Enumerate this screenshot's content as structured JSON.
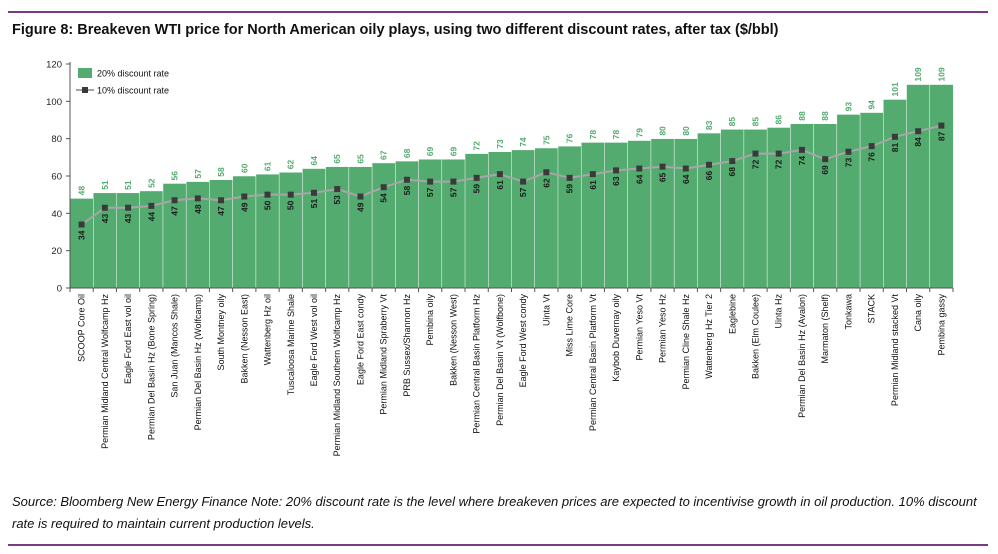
{
  "figure": {
    "title": "Figure 8:  Breakeven WTI price for North American oily plays, using two different discount rates, after tax ($/bbl)",
    "source": "Source: Bloomberg New Energy Finance   Note: 20% discount rate is the level where breakeven prices are expected to incentivise growth in oil production. 10% discount rate is required to maintain current production levels."
  },
  "colors": {
    "bar": "#54ab70",
    "bar_label": "#54ab70",
    "line": "#a6a6a6",
    "marker": "#3a3a3a",
    "rule": "#7a3a86"
  },
  "chart_data": {
    "type": "bar",
    "title": "Breakeven WTI price for North American oily plays, using two different discount rates, after tax ($/bbl)",
    "xlabel": "",
    "ylabel": "",
    "ylim": [
      0,
      120
    ],
    "yticks": [
      0,
      20,
      40,
      60,
      80,
      100,
      120
    ],
    "legend_position": "top-left",
    "categories": [
      "SCOOP Core Oil",
      "Permian Midland Central Wolfcamp Hz",
      "Eagle Ford East vol oil",
      "Permian Del Basin Hz (Bone Spring)",
      "San Juan (Mancos Shale)",
      "Permian Del Basin Hz (Wolfcamp)",
      "South Montney oily",
      "Bakken (Nesson East)",
      "Wattenberg Hz oil",
      "Tuscaloosa Marine Shale",
      "Eagle Ford West vol oil",
      "Permian Midland Southern Wolfcamp Hz",
      "Eagle Ford East condy",
      "Permian Midland Spraberry Vt",
      "PRB Sussex/Shannon Hz",
      "Pembina oily",
      "Bakken (Nesson West)",
      "Permian Central Basin Platform Hz",
      "Permian Del Basin Vt (Wolfbone)",
      "Eagle Ford West condy",
      "Uinta Vt",
      "Miss Lime Core",
      "Permian Central Basin Platform Vt",
      "Kaybob Duvernay oily",
      "Permian Yeso Vt",
      "Permian Yeso Hz",
      "Permian Cline Shale Hz",
      "Wattenberg Hz Tier 2",
      "Eaglebine",
      "Bakken (Elm Coulee)",
      "Uinta Hz",
      "Permian Del Basin Hz (Avalon)",
      "Marmaton (Shelf)",
      "Tonkawa",
      "STACK",
      "Permian Midland stacked Vt",
      "Cana oily",
      "Pembina gassy"
    ],
    "series": [
      {
        "name": "20% discount rate",
        "kind": "bar",
        "values": [
          48,
          51,
          51,
          52,
          56,
          57,
          58,
          60,
          61,
          62,
          64,
          65,
          65,
          67,
          68,
          69,
          69,
          72,
          73,
          74,
          75,
          76,
          78,
          78,
          79,
          80,
          80,
          83,
          85,
          85,
          86,
          88,
          88,
          93,
          94,
          101,
          109,
          109
        ]
      },
      {
        "name": "10% discount rate",
        "kind": "line",
        "values": [
          34,
          43,
          43,
          44,
          47,
          48,
          47,
          49,
          50,
          50,
          51,
          53,
          49,
          54,
          58,
          57,
          57,
          59,
          61,
          57,
          62,
          59,
          61,
          63,
          64,
          65,
          64,
          66,
          68,
          72,
          72,
          74,
          69,
          73,
          76,
          81,
          84,
          87
        ]
      }
    ]
  }
}
